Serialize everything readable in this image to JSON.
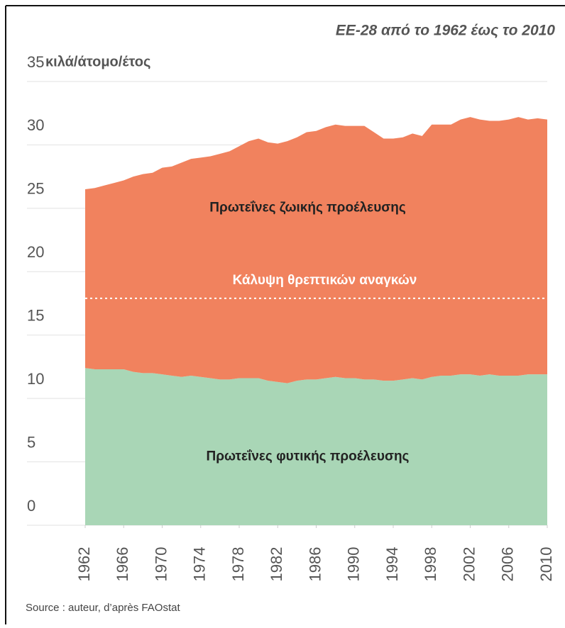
{
  "chart_data": {
    "type": "stacked-area",
    "title": "ΕΕ-28 από το 1962 έως το 2010",
    "y_label": "κιλά/άτομο/έτος",
    "source": "Source : auteur, d’après FAOstat",
    "x": [
      1962,
      1963,
      1964,
      1965,
      1966,
      1967,
      1968,
      1969,
      1970,
      1971,
      1972,
      1973,
      1974,
      1975,
      1976,
      1977,
      1978,
      1979,
      1980,
      1981,
      1982,
      1983,
      1984,
      1985,
      1986,
      1987,
      1988,
      1989,
      1990,
      1991,
      1992,
      1993,
      1994,
      1995,
      1996,
      1997,
      1998,
      1999,
      2000,
      2001,
      2002,
      2003,
      2004,
      2005,
      2006,
      2007,
      2008,
      2009,
      2010
    ],
    "xlim": [
      1962,
      2010
    ],
    "xticks": [
      1962,
      1966,
      1970,
      1974,
      1978,
      1982,
      1986,
      1990,
      1994,
      1998,
      2002,
      2006,
      2010
    ],
    "ylim": [
      0,
      35
    ],
    "yticks": [
      0,
      5,
      10,
      15,
      20,
      25,
      30,
      35
    ],
    "grid": true,
    "series": [
      {
        "name": "Πρωτεΐνες φυτικής προέλευσης",
        "color": "#a9d6b6",
        "values": [
          12.4,
          12.3,
          12.3,
          12.3,
          12.3,
          12.1,
          12.0,
          12.0,
          11.9,
          11.8,
          11.7,
          11.8,
          11.7,
          11.6,
          11.5,
          11.5,
          11.6,
          11.6,
          11.6,
          11.4,
          11.3,
          11.2,
          11.4,
          11.5,
          11.5,
          11.6,
          11.7,
          11.6,
          11.6,
          11.5,
          11.5,
          11.4,
          11.4,
          11.5,
          11.6,
          11.5,
          11.7,
          11.8,
          11.8,
          11.9,
          11.9,
          11.8,
          11.9,
          11.8,
          11.8,
          11.8,
          11.9,
          11.9,
          11.9
        ]
      },
      {
        "name": "Πρωτεΐνες ζωικής προέλευσης",
        "color": "#f1825e",
        "values": [
          14.1,
          14.3,
          14.5,
          14.7,
          14.9,
          15.4,
          15.7,
          15.8,
          16.3,
          16.5,
          16.9,
          17.1,
          17.3,
          17.5,
          17.8,
          18.0,
          18.3,
          18.7,
          18.9,
          18.8,
          18.8,
          19.1,
          19.2,
          19.5,
          19.6,
          19.8,
          19.9,
          19.9,
          19.9,
          20.0,
          19.5,
          19.1,
          19.1,
          19.1,
          19.3,
          19.2,
          19.9,
          19.8,
          19.8,
          20.1,
          20.3,
          20.2,
          20.0,
          20.1,
          20.2,
          20.4,
          20.1,
          20.2,
          20.1
        ]
      }
    ],
    "reference_line": {
      "value": 17.9,
      "label": "Κάλυψη θρεπτικών αναγκών",
      "color": "#ffffff"
    }
  }
}
